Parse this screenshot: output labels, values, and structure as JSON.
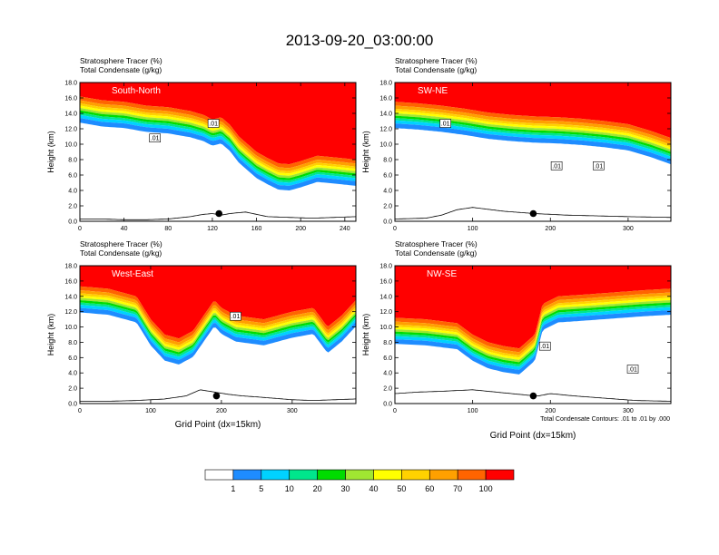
{
  "figure": {
    "title": "2013-09-20_03:00:00",
    "note": "Total Condensate Contours: .01 to .01 by .000"
  },
  "colorbar": {
    "colors": [
      "#ffffff",
      "#1e8cff",
      "#00d2ff",
      "#00e68c",
      "#00dc00",
      "#a0e632",
      "#ffff00",
      "#ffd200",
      "#ffa000",
      "#ff6400",
      "#ff0000"
    ],
    "labels": [
      "1",
      "5",
      "10",
      "20",
      "30",
      "40",
      "50",
      "60",
      "70",
      "100"
    ]
  },
  "chart_data": [
    {
      "type": "heatmap",
      "panel_label": "South-North",
      "title_lines": [
        "Stratosphere Tracer   (%)",
        "Total Condensate   (g/kg)"
      ],
      "ylabel": "Height (km)",
      "xlabel": "",
      "xlim": [
        0,
        250
      ],
      "ylim": [
        0,
        18
      ],
      "xticks": [
        "0",
        "40",
        "80",
        "120",
        "160",
        "200",
        "240"
      ],
      "xtick_values": [
        0,
        40,
        80,
        120,
        160,
        200,
        240
      ],
      "yticks": [
        "0.0",
        "2.0",
        "4.0",
        "6.0",
        "8.0",
        "10.0",
        "12.0",
        "14.0",
        "16.0",
        "18.0"
      ],
      "tropopause_x": [
        0,
        20,
        40,
        60,
        80,
        100,
        112,
        120,
        128,
        136,
        144,
        152,
        160,
        170,
        180,
        190,
        200,
        215,
        230,
        250
      ],
      "tropopause_km": [
        16.2,
        15.7,
        15.5,
        15.0,
        14.8,
        14.3,
        13.8,
        13.2,
        13.5,
        12.5,
        11.0,
        10.0,
        9.0,
        8.2,
        7.5,
        7.4,
        7.8,
        8.5,
        8.3,
        8.0
      ],
      "terrain_x": [
        0,
        20,
        40,
        60,
        80,
        100,
        112,
        120,
        128,
        136,
        150,
        170,
        190,
        210,
        230,
        250
      ],
      "terrain_km": [
        0.3,
        0.3,
        0.2,
        0.2,
        0.3,
        0.6,
        0.9,
        1.0,
        0.8,
        1.0,
        1.2,
        0.6,
        0.5,
        0.4,
        0.5,
        0.6
      ],
      "contour_labels": [
        {
          "x": 68,
          "y": 10.8,
          "text": ".01"
        },
        {
          "x": 121,
          "y": 12.7,
          "text": ".01"
        }
      ],
      "marker": {
        "x": 126,
        "y": 1.0
      }
    },
    {
      "type": "heatmap",
      "panel_label": "SW-NE",
      "title_lines": [
        "Stratosphere Tracer   (%)",
        "Total Condensate   (g/kg)"
      ],
      "ylabel": "Height (km)",
      "xlabel": "",
      "xlim": [
        0,
        355
      ],
      "ylim": [
        0,
        18
      ],
      "xticks": [
        "0",
        "100",
        "200",
        "300"
      ],
      "xtick_values": [
        0,
        100,
        200,
        300
      ],
      "yticks": [
        "0.0",
        "2.0",
        "4.0",
        "6.0",
        "8.0",
        "10.0",
        "12.0",
        "14.0",
        "16.0",
        "18.0"
      ],
      "tropopause_x": [
        0,
        30,
        60,
        90,
        120,
        150,
        180,
        210,
        240,
        270,
        300,
        330,
        355
      ],
      "tropopause_km": [
        15.5,
        15.3,
        15.0,
        14.6,
        14.1,
        13.8,
        13.6,
        13.5,
        13.3,
        13.0,
        12.6,
        11.7,
        10.8
      ],
      "terrain_x": [
        0,
        40,
        60,
        80,
        100,
        140,
        180,
        220,
        260,
        300,
        355
      ],
      "terrain_km": [
        0.3,
        0.4,
        0.8,
        1.5,
        1.8,
        1.3,
        1.0,
        0.8,
        0.7,
        0.6,
        0.5
      ],
      "contour_labels": [
        {
          "x": 65,
          "y": 12.7,
          "text": ".01"
        },
        {
          "x": 208,
          "y": 7.2,
          "text": ".01"
        },
        {
          "x": 262,
          "y": 7.2,
          "text": ".01"
        }
      ],
      "marker": {
        "x": 178,
        "y": 1.0
      }
    },
    {
      "type": "heatmap",
      "panel_label": "West-East",
      "title_lines": [
        "Stratosphere Tracer   (%)",
        "Total Condensate   (g/kg)"
      ],
      "ylabel": "Height (km)",
      "xlabel": "Grid Point (dx=15km)",
      "xlim": [
        0,
        390
      ],
      "ylim": [
        0,
        18
      ],
      "xticks": [
        "0",
        "100",
        "200",
        "300"
      ],
      "xtick_values": [
        0,
        100,
        200,
        300
      ],
      "yticks": [
        "0.0",
        "2.0",
        "4.0",
        "6.0",
        "8.0",
        "10.0",
        "12.0",
        "14.0",
        "16.0",
        "18.0"
      ],
      "tropopause_x": [
        0,
        40,
        80,
        100,
        120,
        140,
        160,
        175,
        190,
        200,
        220,
        260,
        300,
        330,
        350,
        370,
        390
      ],
      "tropopause_km": [
        15.3,
        15.0,
        14.0,
        11.0,
        9.0,
        8.5,
        9.5,
        11.5,
        13.5,
        12.5,
        11.5,
        11.0,
        12.0,
        12.5,
        10.0,
        11.5,
        13.5
      ],
      "terrain_x": [
        0,
        40,
        80,
        120,
        150,
        170,
        190,
        210,
        230,
        260,
        300,
        330,
        360,
        390
      ],
      "terrain_km": [
        0.3,
        0.3,
        0.4,
        0.6,
        1.0,
        1.8,
        1.5,
        1.2,
        1.0,
        0.8,
        0.5,
        0.4,
        0.5,
        0.6
      ],
      "contour_labels": [
        {
          "x": 220,
          "y": 11.4,
          "text": ".01"
        }
      ],
      "marker": {
        "x": 193,
        "y": 1.0
      }
    },
    {
      "type": "heatmap",
      "panel_label": "NW-SE",
      "title_lines": [
        "Stratosphere Tracer   (%)",
        "Total Condensate   (g/kg)"
      ],
      "ylabel": "Height (km)",
      "xlabel": "Grid Point (dx=15km)",
      "xlim": [
        0,
        355
      ],
      "ylim": [
        0,
        18
      ],
      "xticks": [
        "0",
        "100",
        "200",
        "300"
      ],
      "xtick_values": [
        0,
        100,
        200,
        300
      ],
      "yticks": [
        "0.0",
        "2.0",
        "4.0",
        "6.0",
        "8.0",
        "10.0",
        "12.0",
        "14.0",
        "16.0",
        "18.0"
      ],
      "tropopause_x": [
        0,
        40,
        80,
        100,
        120,
        140,
        160,
        180,
        190,
        210,
        240,
        280,
        320,
        355
      ],
      "tropopause_km": [
        11.2,
        11.0,
        10.5,
        9.0,
        8.0,
        7.5,
        7.2,
        9.0,
        13.0,
        14.0,
        14.2,
        14.5,
        14.8,
        15.0
      ],
      "terrain_x": [
        0,
        30,
        60,
        100,
        140,
        170,
        185,
        200,
        230,
        270,
        310,
        355
      ],
      "terrain_km": [
        1.3,
        1.5,
        1.6,
        1.8,
        1.4,
        1.1,
        1.0,
        1.3,
        1.0,
        0.7,
        0.4,
        0.3
      ],
      "contour_labels": [
        {
          "x": 193,
          "y": 7.5,
          "text": ".01"
        },
        {
          "x": 306,
          "y": 4.5,
          "text": ".01"
        }
      ],
      "marker": {
        "x": 178,
        "y": 1.0
      }
    }
  ]
}
